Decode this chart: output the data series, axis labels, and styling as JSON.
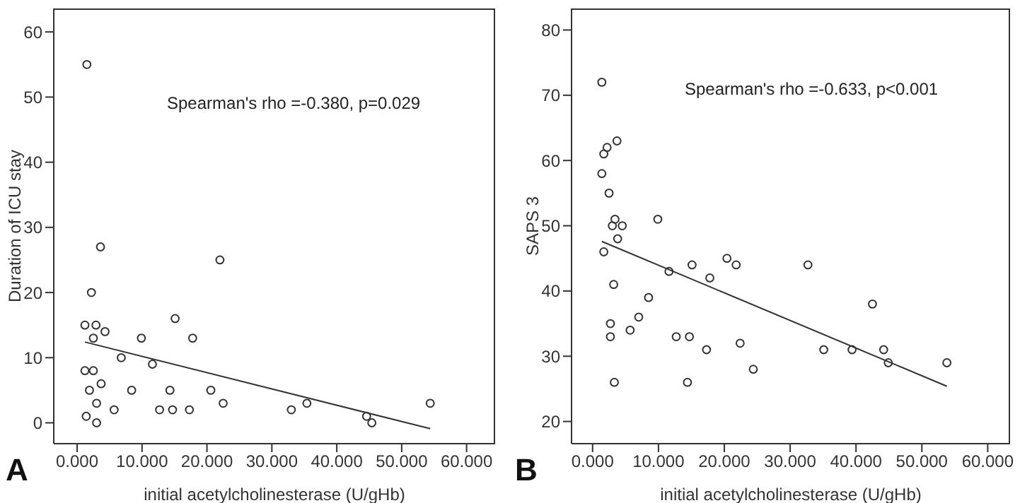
{
  "chart_data": [
    {
      "type": "scatter",
      "title": "A",
      "xlabel": "initial acetylcholinesterase (U/gHb)",
      "ylabel": "Duration of ICU stay",
      "annotations": [
        "Spearman's rho =-0.380, p=0.029"
      ],
      "grid": false,
      "legend": false,
      "xlim": [
        -3.6,
        64.4
      ],
      "ylim": [
        -3.2,
        63.6
      ],
      "xticks": [
        {
          "value": 0,
          "label": "0.000"
        },
        {
          "value": 10,
          "label": "10.000"
        },
        {
          "value": 20,
          "label": "20.000"
        },
        {
          "value": 30,
          "label": "30.000"
        },
        {
          "value": 40,
          "label": "40.000"
        },
        {
          "value": 50,
          "label": "50.000"
        },
        {
          "value": 60,
          "label": "60.000"
        }
      ],
      "yticks": [
        0,
        10,
        20,
        30,
        40,
        50,
        60
      ],
      "series": [
        {
          "marker": "circle",
          "color": "#333333",
          "x": [
            1.5,
            3.6,
            22.0,
            2.2,
            15.1,
            1.2,
            2.9,
            4.3,
            2.5,
            9.9,
            17.8,
            6.8,
            11.6,
            1.2,
            2.5,
            3.7,
            1.9,
            8.4,
            14.3,
            20.6,
            3.0,
            22.5,
            35.4,
            54.4,
            5.7,
            12.7,
            14.7,
            17.3,
            33.0,
            1.4,
            44.6,
            3.0,
            45.4
          ],
          "values": [
            55,
            27,
            25,
            20,
            16,
            15,
            15,
            14,
            13,
            13,
            13,
            10,
            9,
            8,
            8,
            6,
            5,
            5,
            5,
            5,
            3,
            3,
            3,
            3,
            2,
            2,
            2,
            2,
            2,
            1,
            1,
            0,
            0
          ]
        },
        {
          "type": "line",
          "color": "#333333",
          "x": [
            1.2,
            54.4
          ],
          "values": [
            12.4,
            -0.9
          ]
        }
      ]
    },
    {
      "type": "scatter",
      "title": "B",
      "xlabel": "initial acetylcholinesterase (U/gHb)",
      "ylabel": "SAPS 3",
      "annotations": [
        "Spearman's rho =-0.633, p<0.001"
      ],
      "grid": false,
      "legend": false,
      "xlim": [
        -3.2,
        63.4
      ],
      "ylim": [
        16.6,
        83.3
      ],
      "xticks": [
        {
          "value": 0,
          "label": "0.000"
        },
        {
          "value": 10,
          "label": "10.000"
        },
        {
          "value": 20,
          "label": "20.000"
        },
        {
          "value": 30,
          "label": "30.000"
        },
        {
          "value": 40,
          "label": "40.000"
        },
        {
          "value": 50,
          "label": "50.000"
        },
        {
          "value": 60,
          "label": "60.000"
        }
      ],
      "yticks": [
        20,
        30,
        40,
        50,
        60,
        70,
        80
      ],
      "series": [
        {
          "marker": "circle",
          "color": "#333333",
          "x": [
            1.4,
            2.2,
            1.7,
            3.7,
            1.4,
            2.5,
            3.4,
            3.0,
            4.5,
            9.9,
            1.7,
            3.8,
            2.7,
            2.7,
            3.2,
            3.3,
            5.7,
            7.0,
            8.5,
            11.6,
            12.7,
            14.4,
            14.7,
            15.1,
            17.3,
            17.8,
            20.4,
            21.8,
            22.4,
            24.4,
            32.7,
            35.1,
            39.4,
            42.5,
            44.2,
            44.9,
            53.8
          ],
          "values": [
            72,
            62,
            61,
            63,
            58,
            55,
            51,
            50,
            50,
            51,
            46,
            48,
            35,
            33,
            41,
            26,
            34,
            36,
            39,
            43,
            33,
            26,
            33,
            44,
            31,
            42,
            45,
            44,
            32,
            28,
            44,
            31,
            31,
            38,
            31,
            29,
            29
          ]
        },
        {
          "type": "line",
          "color": "#333333",
          "x": [
            1.4,
            53.8
          ],
          "values": [
            47.6,
            25.4
          ]
        }
      ]
    }
  ]
}
